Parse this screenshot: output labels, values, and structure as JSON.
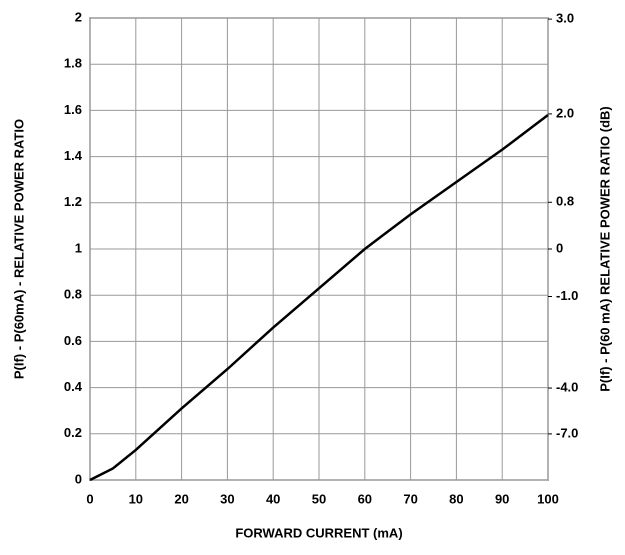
{
  "chart_data": {
    "type": "line",
    "xlabel": "FORWARD CURRENT (mA)",
    "ylabel": "P(If) - P(60mA) -  RELATIVE POWER RATIO",
    "y2label": "P(If) - P(60 mA) RELATIVE POWER RATIO (dB)",
    "x": [
      0,
      2,
      5,
      10,
      20,
      30,
      40,
      50,
      60,
      70,
      80,
      90,
      100
    ],
    "values": [
      0,
      0.02,
      0.05,
      0.13,
      0.31,
      0.48,
      0.66,
      0.83,
      1.0,
      1.15,
      1.29,
      1.43,
      1.58
    ],
    "color": "#000000",
    "xlim": [
      0,
      100
    ],
    "xticks": [
      0,
      10,
      20,
      30,
      40,
      50,
      60,
      70,
      80,
      90,
      100
    ],
    "ylim": [
      0,
      2
    ],
    "yticks": [
      0,
      0.2,
      0.4,
      0.6,
      0.8,
      1,
      1.2,
      1.4,
      1.6,
      1.8,
      2
    ],
    "y2scale": "db-of-left-ratio",
    "y2ticks": [
      {
        "value": 3,
        "label": "3.0"
      },
      {
        "value": 2,
        "label": "2.0"
      },
      0.8,
      0,
      {
        "value": -1,
        "label": "-1.0"
      },
      {
        "value": -4,
        "label": "-4.0"
      },
      {
        "value": -7,
        "label": "-7.0"
      }
    ],
    "grid": true
  }
}
